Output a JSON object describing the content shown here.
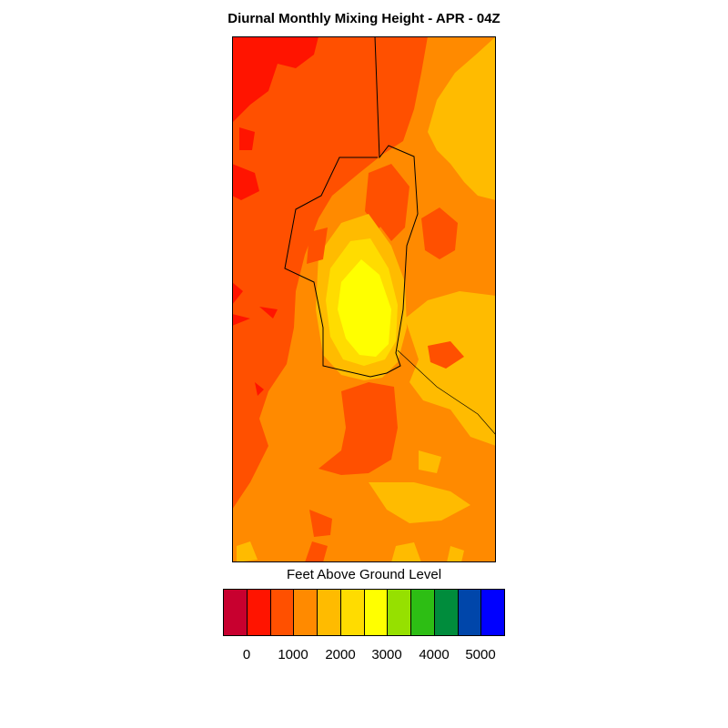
{
  "title": "Diurnal Monthly Mixing Height - APR - 04Z",
  "legend": {
    "title": "Feet Above Ground Level",
    "colors": [
      "#c8002f",
      "#ff1400",
      "#ff5000",
      "#ff8a00",
      "#ffbb00",
      "#ffdc00",
      "#ffff00",
      "#96e000",
      "#2dbe14",
      "#008c3c",
      "#0046aa",
      "#0000ff"
    ],
    "tick_labels": [
      "0",
      "1000",
      "2000",
      "3000",
      "4000",
      "5000"
    ],
    "tick_values": [
      0,
      1000,
      2000,
      3000,
      4000,
      5000
    ]
  },
  "map": {
    "description_colors": {
      "lowest_present": "#ff1400",
      "dominant": "#ff8a00",
      "peak": "#ffff00"
    }
  }
}
